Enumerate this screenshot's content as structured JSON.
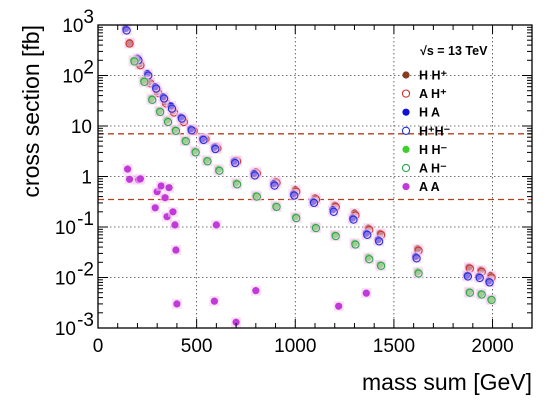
{
  "chart_data": {
    "type": "scatter",
    "xlabel": "mass sum [GeV]",
    "ylabel": "cross section [fb]",
    "xlim": [
      0,
      2200
    ],
    "ylim": [
      0.001,
      1000
    ],
    "yscale": "log",
    "x_ticks": [
      0,
      500,
      1000,
      1500,
      2000
    ],
    "x_tick_labels": [
      "0",
      "500",
      "1000",
      "1500",
      "2000"
    ],
    "y_ticks": [
      0.001,
      0.01,
      0.1,
      1,
      10,
      100,
      1000
    ],
    "y_tick_labels": [
      {
        "base": "10",
        "exp": "-3"
      },
      {
        "base": "10",
        "exp": "-2"
      },
      {
        "base": "10",
        "exp": "-1"
      },
      {
        "base": "1",
        "exp": ""
      },
      {
        "base": "10",
        "exp": ""
      },
      {
        "base": "10",
        "exp": "2"
      },
      {
        "base": "10",
        "exp": "3"
      }
    ],
    "grid": true,
    "legend_position": "top-right",
    "annotation": "√s = 13 TeV",
    "hlines": [
      {
        "y": 7.0,
        "color": "#b0411e",
        "style": "dashed"
      },
      {
        "y": 0.35,
        "color": "#b0411e",
        "style": "dashed"
      }
    ],
    "series": [
      {
        "name": "H H⁺",
        "color": "#8b3a1c",
        "marker": "filled",
        "x": [
          160,
          210,
          260,
          300,
          340,
          380,
          430,
          480,
          540,
          600,
          700,
          800,
          900,
          1000,
          1100,
          1200,
          1300,
          1370,
          1430,
          1620,
          1880,
          1940,
          1990
        ],
        "y": [
          450,
          170,
          75,
          48,
          30,
          20,
          13,
          8.5,
          5.8,
          3.9,
          2.1,
          1.25,
          0.8,
          0.55,
          0.38,
          0.27,
          0.19,
          0.095,
          0.075,
          0.037,
          0.016,
          0.014,
          0.011
        ]
      },
      {
        "name": "A H⁺",
        "color": "#d0322d",
        "marker": "open",
        "x": [
          160,
          215,
          265,
          305,
          345,
          385,
          435,
          485,
          545,
          605,
          705,
          805,
          905,
          1005,
          1105,
          1205,
          1305,
          1375,
          1435,
          1625,
          1885,
          1945,
          1995
        ],
        "y": [
          430,
          160,
          70,
          45,
          28,
          18.5,
          12,
          8.0,
          5.5,
          3.6,
          2.0,
          1.15,
          0.75,
          0.5,
          0.35,
          0.25,
          0.17,
          0.088,
          0.07,
          0.034,
          0.015,
          0.013,
          0.01
        ]
      },
      {
        "name": "H A",
        "color": "#1010d8",
        "marker": "filled",
        "x": [
          140,
          200,
          250,
          290,
          330,
          370,
          420,
          470,
          530,
          590,
          690,
          790,
          890,
          990,
          1090,
          1190,
          1290,
          1360,
          1420,
          1610,
          1870,
          1930,
          1980
        ],
        "y": [
          850,
          220,
          110,
          60,
          38,
          25,
          15,
          8.8,
          5.6,
          3.8,
          2.0,
          1.15,
          0.72,
          0.45,
          0.32,
          0.22,
          0.15,
          0.075,
          0.056,
          0.026,
          0.011,
          0.0105,
          0.0085
        ]
      },
      {
        "name": "H⁺H⁻",
        "color": "#2230d8",
        "marker": "open",
        "x": [
          145,
          205,
          255,
          295,
          335,
          375,
          425,
          475,
          535,
          595,
          695,
          795,
          895,
          995,
          1095,
          1195,
          1295,
          1365,
          1425,
          1615,
          1875,
          1935,
          1985
        ],
        "y": [
          780,
          200,
          100,
          55,
          35,
          22,
          14,
          8.2,
          5.3,
          3.5,
          1.85,
          1.05,
          0.66,
          0.42,
          0.3,
          0.2,
          0.14,
          0.07,
          0.052,
          0.024,
          0.0105,
          0.0098,
          0.008
        ]
      },
      {
        "name": "H H⁻",
        "color": "#3fcf2a",
        "marker": "filled",
        "x": [
          180,
          230,
          270,
          310,
          350,
          390,
          440,
          490,
          550,
          610,
          700,
          800,
          900,
          1000,
          1100,
          1200,
          1300,
          1370,
          1430,
          1620,
          1880,
          1940,
          1990
        ],
        "y": [
          200,
          80,
          35,
          20,
          13,
          8.5,
          5.2,
          3.2,
          2.1,
          1.4,
          0.75,
          0.42,
          0.26,
          0.16,
          0.1,
          0.07,
          0.048,
          0.025,
          0.018,
          0.013,
          0.0052,
          0.0048,
          0.0037
        ]
      },
      {
        "name": "A H⁻",
        "color": "#2aa84a",
        "marker": "open",
        "x": [
          185,
          235,
          275,
          315,
          355,
          395,
          445,
          495,
          555,
          615,
          705,
          805,
          905,
          1005,
          1105,
          1205,
          1305,
          1375,
          1435,
          1625,
          1885,
          1945,
          1995
        ],
        "y": [
          190,
          75,
          33,
          19,
          12,
          8.0,
          5.0,
          3.0,
          2.0,
          1.3,
          0.7,
          0.4,
          0.25,
          0.15,
          0.095,
          0.066,
          0.045,
          0.023,
          0.017,
          0.012,
          0.005,
          0.0046,
          0.0036
        ]
      },
      {
        "name": "A A",
        "color": "#c13ad9",
        "marker": "filled",
        "x": [
          150,
          160,
          205,
          215,
          290,
          300,
          320,
          340,
          350,
          360,
          380,
          390,
          395,
          400,
          590,
          600,
          700,
          800,
          1220,
          1360
        ],
        "y": [
          1.4,
          0.88,
          0.86,
          0.9,
          0.24,
          0.5,
          0.65,
          0.38,
          0.16,
          0.6,
          0.2,
          0.11,
          0.035,
          0.003,
          0.0034,
          0.11,
          0.0013,
          0.0055,
          0.0027,
          0.0049
        ]
      }
    ]
  }
}
